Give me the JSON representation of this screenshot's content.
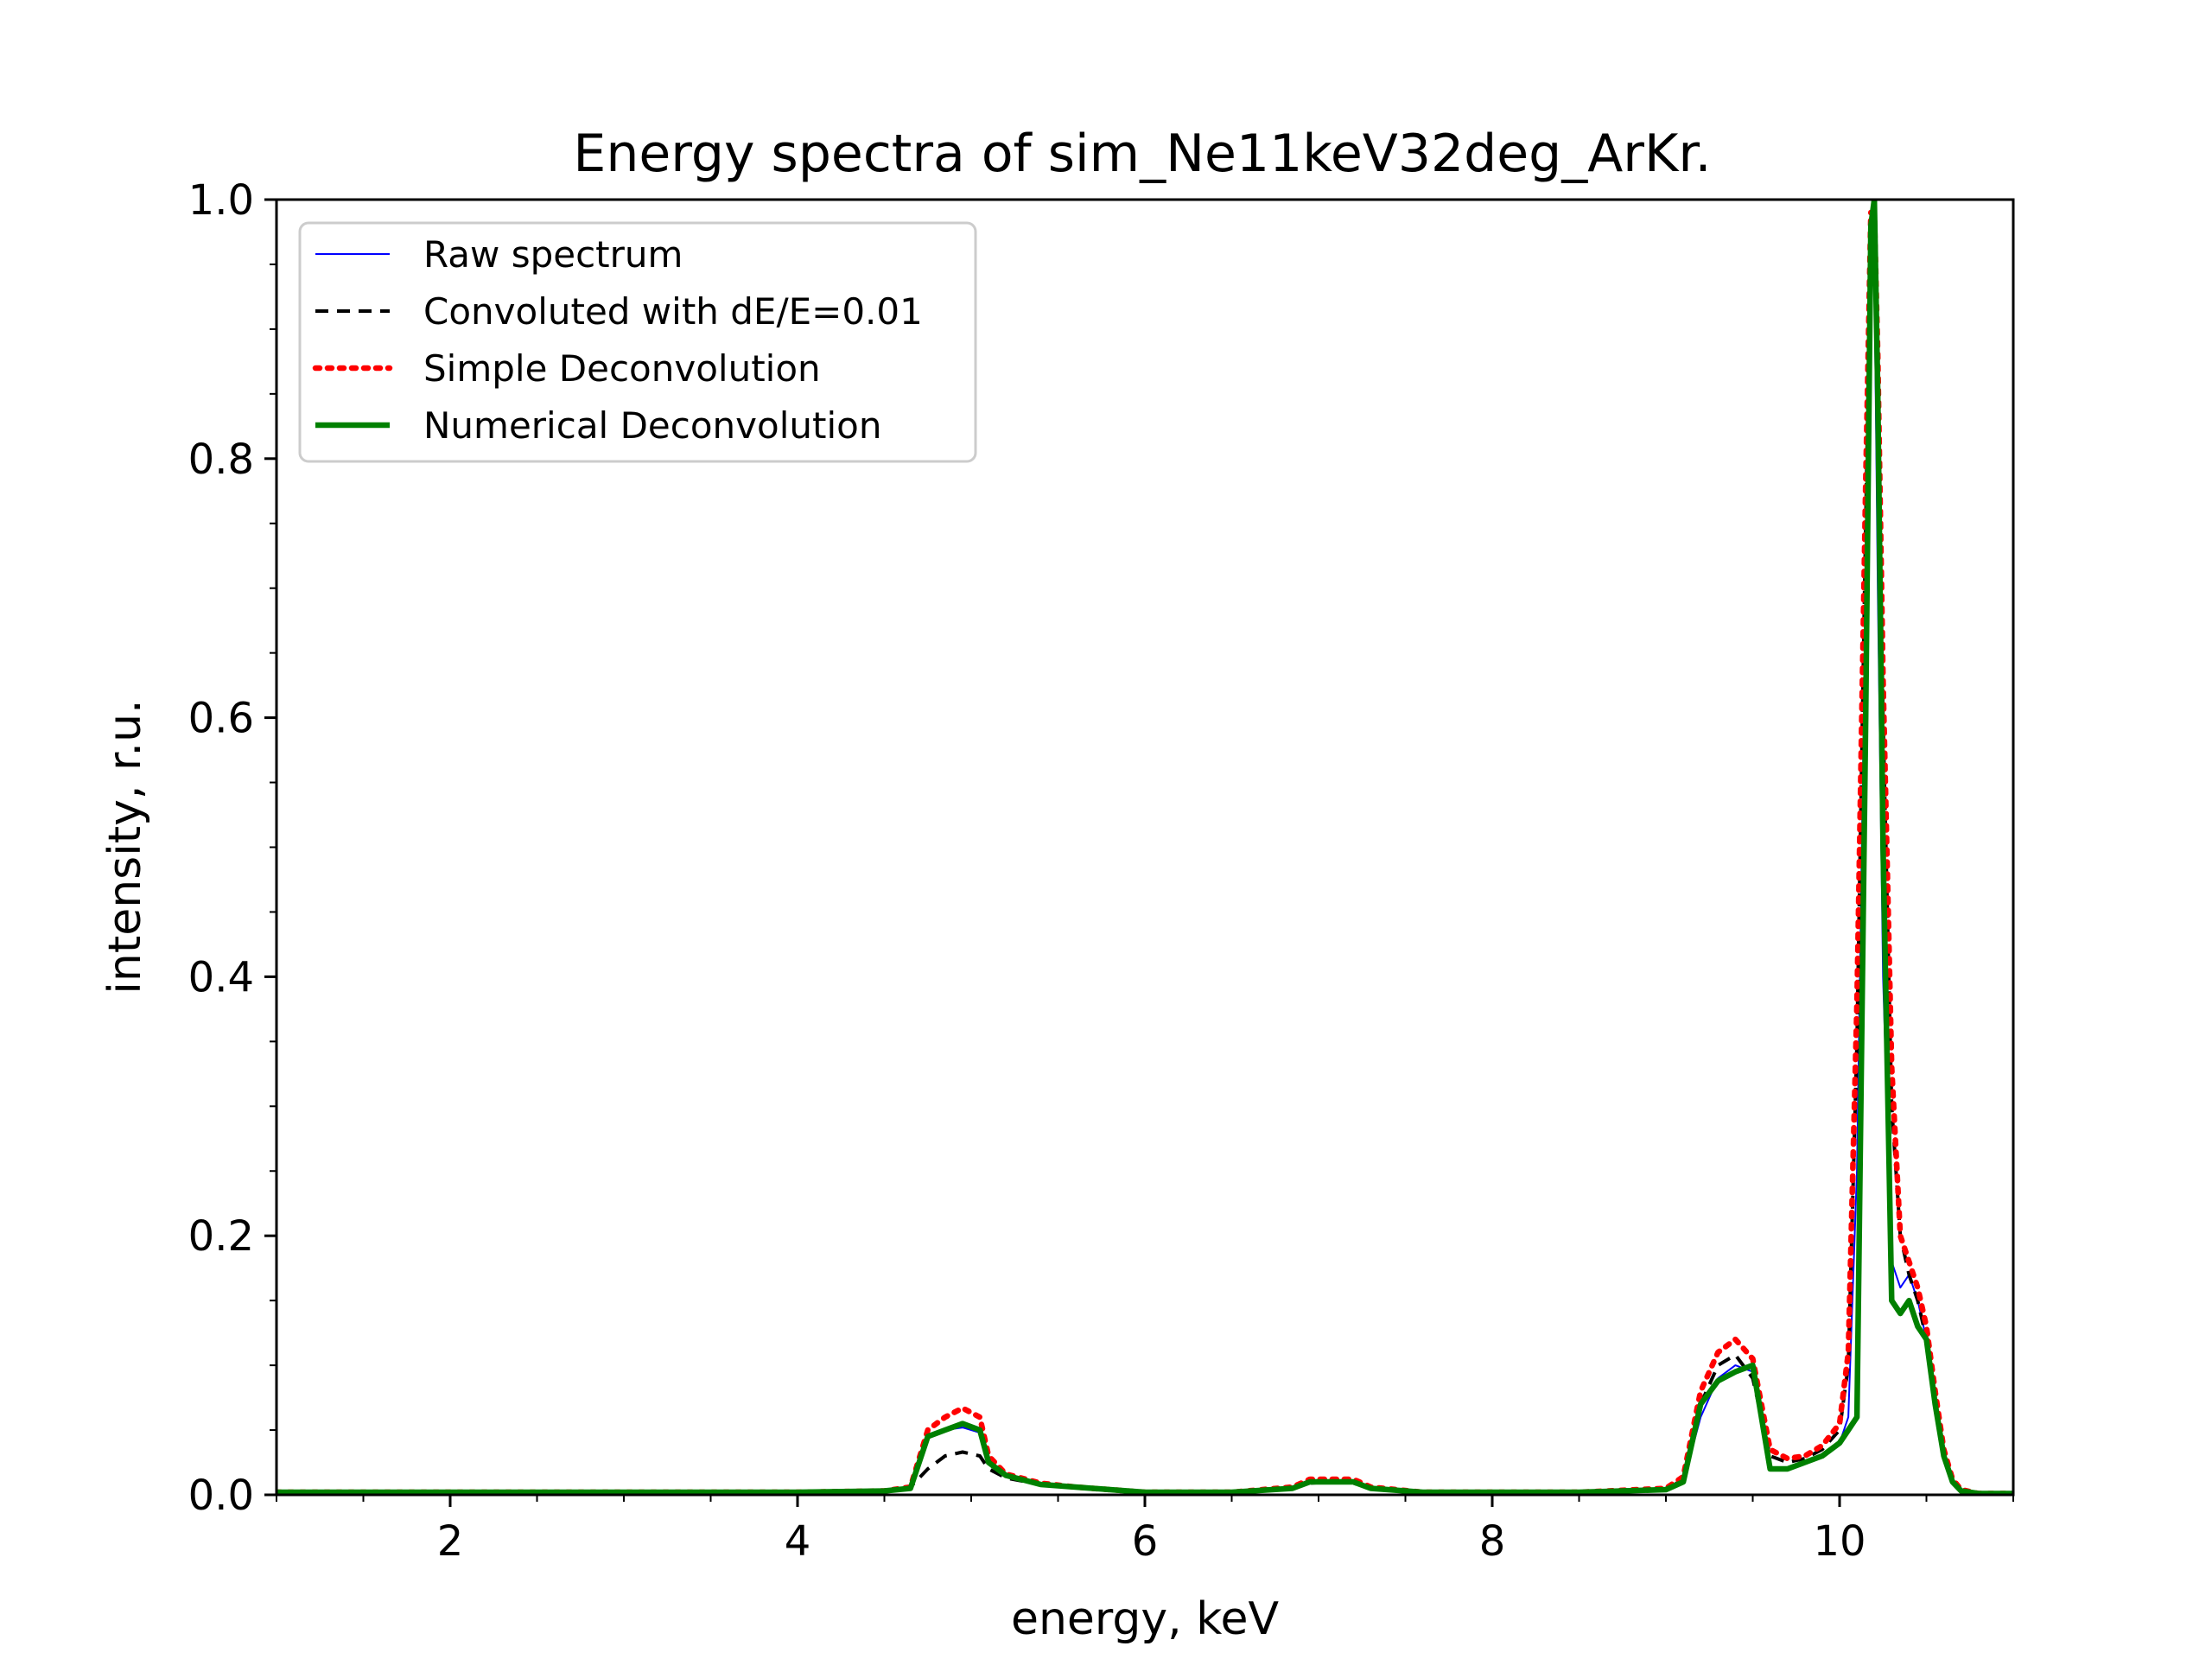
{
  "chart_data": {
    "type": "line",
    "title": "Energy spectra of sim_Ne11keV32deg_ArKr.",
    "xlabel": "energy, keV",
    "ylabel": "intensity, r.u.",
    "xlim": [
      1,
      11
    ],
    "ylim": [
      0,
      1.0
    ],
    "xticks": [
      2,
      4,
      6,
      8,
      10
    ],
    "xtick_labels": [
      "2",
      "4",
      "6",
      "8",
      "10"
    ],
    "yticks": [
      0,
      0.2,
      0.4,
      0.6,
      0.8,
      1.0
    ],
    "ytick_labels": [
      "0.0",
      "0.2",
      "0.4",
      "0.6",
      "0.8",
      "1.0"
    ],
    "grid": false,
    "legend_position": "top-left",
    "series": [
      {
        "name": "Raw spectrum",
        "color": "#0000ff",
        "style": "solid-thin",
        "x": [
          1.0,
          2.0,
          3.0,
          4.0,
          4.5,
          4.65,
          4.75,
          4.85,
          4.95,
          5.05,
          5.1,
          5.2,
          5.4,
          5.6,
          5.8,
          6.0,
          6.5,
          6.85,
          6.95,
          7.05,
          7.2,
          7.3,
          7.6,
          8.0,
          8.5,
          9.0,
          9.1,
          9.2,
          9.3,
          9.4,
          9.5,
          9.6,
          9.7,
          9.8,
          9.9,
          10.0,
          10.05,
          10.1,
          10.15,
          10.18,
          10.2,
          10.22,
          10.25,
          10.3,
          10.35,
          10.4,
          10.45,
          10.5,
          10.55,
          10.6,
          10.65,
          10.7,
          10.8,
          11.0
        ],
        "y": [
          0.002,
          0.002,
          0.002,
          0.002,
          0.003,
          0.005,
          0.045,
          0.05,
          0.052,
          0.048,
          0.025,
          0.015,
          0.008,
          0.006,
          0.004,
          0.002,
          0.002,
          0.005,
          0.01,
          0.01,
          0.01,
          0.005,
          0.002,
          0.002,
          0.002,
          0.004,
          0.01,
          0.06,
          0.09,
          0.1,
          0.095,
          0.02,
          0.02,
          0.025,
          0.03,
          0.04,
          0.06,
          0.25,
          0.7,
          0.98,
          0.95,
          0.7,
          0.4,
          0.18,
          0.16,
          0.17,
          0.15,
          0.12,
          0.07,
          0.03,
          0.01,
          0.003,
          0.001,
          0.001
        ]
      },
      {
        "name": "Convoluted with dE/E=0.01",
        "color": "#000000",
        "style": "dashed",
        "x": [
          1.0,
          2.0,
          3.0,
          4.0,
          4.5,
          4.65,
          4.75,
          4.85,
          4.95,
          5.05,
          5.1,
          5.2,
          5.4,
          5.6,
          5.8,
          6.0,
          6.5,
          6.85,
          6.95,
          7.05,
          7.2,
          7.3,
          7.6,
          8.0,
          8.5,
          9.0,
          9.1,
          9.2,
          9.3,
          9.4,
          9.5,
          9.6,
          9.7,
          9.8,
          9.9,
          10.0,
          10.05,
          10.1,
          10.15,
          10.18,
          10.2,
          10.22,
          10.25,
          10.3,
          10.35,
          10.4,
          10.45,
          10.5,
          10.55,
          10.6,
          10.65,
          10.7,
          10.8,
          11.0
        ],
        "y": [
          0.002,
          0.002,
          0.002,
          0.002,
          0.003,
          0.006,
          0.02,
          0.03,
          0.033,
          0.03,
          0.02,
          0.013,
          0.008,
          0.006,
          0.004,
          0.002,
          0.002,
          0.005,
          0.009,
          0.01,
          0.009,
          0.005,
          0.002,
          0.002,
          0.002,
          0.004,
          0.012,
          0.07,
          0.1,
          0.108,
          0.09,
          0.03,
          0.025,
          0.028,
          0.035,
          0.05,
          0.1,
          0.35,
          0.75,
          0.97,
          0.98,
          0.85,
          0.6,
          0.3,
          0.2,
          0.17,
          0.15,
          0.12,
          0.07,
          0.03,
          0.01,
          0.003,
          0.001,
          0.001
        ]
      },
      {
        "name": "Simple Deconvolution",
        "color": "#ff0000",
        "style": "dotted",
        "x": [
          1.0,
          2.0,
          3.0,
          4.0,
          4.5,
          4.65,
          4.75,
          4.85,
          4.95,
          5.05,
          5.1,
          5.2,
          5.4,
          5.6,
          5.8,
          6.0,
          6.5,
          6.85,
          6.95,
          7.05,
          7.2,
          7.3,
          7.6,
          8.0,
          8.5,
          9.0,
          9.1,
          9.2,
          9.3,
          9.4,
          9.5,
          9.6,
          9.7,
          9.8,
          9.9,
          10.0,
          10.05,
          10.1,
          10.15,
          10.18,
          10.2,
          10.22,
          10.25,
          10.3,
          10.35,
          10.4,
          10.45,
          10.5,
          10.55,
          10.6,
          10.65,
          10.7,
          10.8,
          11.0
        ],
        "y": [
          0.002,
          0.002,
          0.002,
          0.002,
          0.003,
          0.006,
          0.05,
          0.06,
          0.067,
          0.06,
          0.03,
          0.016,
          0.009,
          0.006,
          0.004,
          0.002,
          0.002,
          0.006,
          0.012,
          0.012,
          0.012,
          0.006,
          0.002,
          0.002,
          0.002,
          0.005,
          0.014,
          0.08,
          0.11,
          0.12,
          0.105,
          0.035,
          0.028,
          0.03,
          0.038,
          0.055,
          0.11,
          0.38,
          0.78,
          0.99,
          0.99,
          0.88,
          0.63,
          0.33,
          0.2,
          0.18,
          0.16,
          0.13,
          0.08,
          0.035,
          0.012,
          0.004,
          0.001,
          0.001
        ]
      },
      {
        "name": "Numerical Deconvolution",
        "color": "#008000",
        "style": "solid-thick",
        "x": [
          1.0,
          2.0,
          3.0,
          4.0,
          4.5,
          4.65,
          4.75,
          4.85,
          4.95,
          5.05,
          5.1,
          5.2,
          5.4,
          5.6,
          5.8,
          6.0,
          6.5,
          6.85,
          6.95,
          7.05,
          7.2,
          7.3,
          7.6,
          8.0,
          8.5,
          9.0,
          9.1,
          9.2,
          9.3,
          9.4,
          9.5,
          9.6,
          9.7,
          9.8,
          9.9,
          10.0,
          10.05,
          10.1,
          10.15,
          10.18,
          10.2,
          10.22,
          10.25,
          10.3,
          10.35,
          10.4,
          10.45,
          10.5,
          10.55,
          10.6,
          10.65,
          10.7,
          10.8,
          11.0
        ],
        "y": [
          0.002,
          0.002,
          0.002,
          0.002,
          0.003,
          0.005,
          0.045,
          0.05,
          0.055,
          0.05,
          0.025,
          0.015,
          0.008,
          0.006,
          0.004,
          0.002,
          0.002,
          0.005,
          0.01,
          0.01,
          0.01,
          0.005,
          0.002,
          0.002,
          0.002,
          0.004,
          0.01,
          0.07,
          0.088,
          0.095,
          0.1,
          0.02,
          0.02,
          0.025,
          0.03,
          0.04,
          0.05,
          0.06,
          0.6,
          0.98,
          1.0,
          0.85,
          0.5,
          0.15,
          0.14,
          0.15,
          0.13,
          0.12,
          0.07,
          0.03,
          0.01,
          0.003,
          0.001,
          0.001
        ]
      }
    ]
  }
}
